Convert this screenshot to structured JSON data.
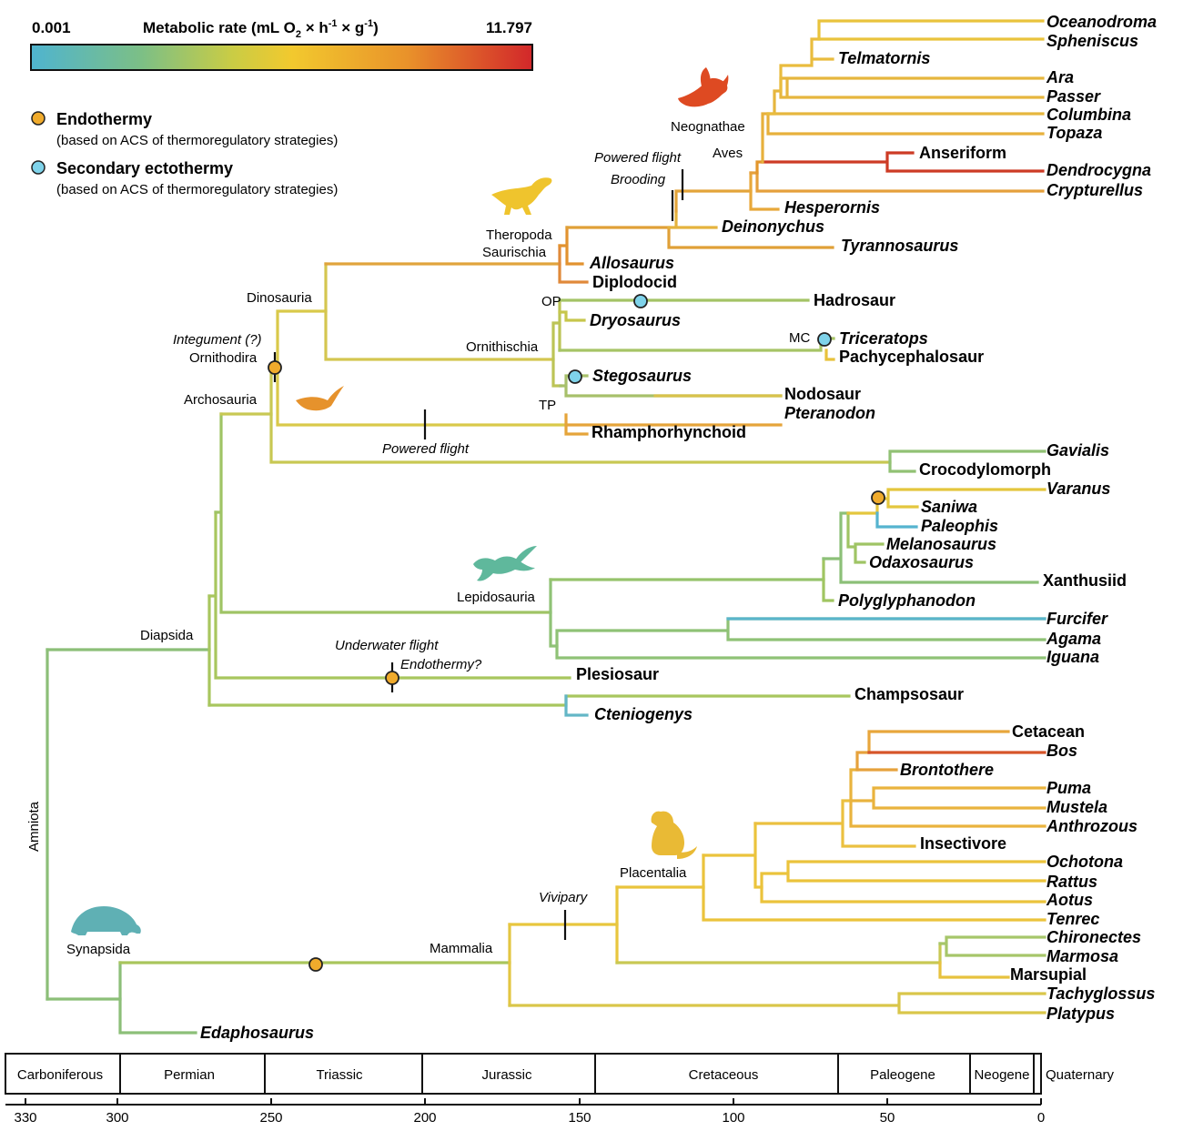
{
  "colorbar": {
    "min_label": "0.001",
    "max_label": "11.797",
    "title_pre": "Metabolic rate (mL O",
    "title_sub": "2",
    "title_mid": " × h",
    "title_sup1": "-1",
    "title_mid2": " × g",
    "title_sup2": "-1",
    "title_post": ")",
    "stops": [
      "#4fb4cf",
      "#7cbf86",
      "#c9cc45",
      "#f2c92e",
      "#e9922a",
      "#d2272a"
    ]
  },
  "legend": {
    "endothermy": {
      "title": "Endothermy",
      "subtitle": "(based on ACS of thermoregulatory strategies)",
      "color": "#f0ab2c"
    },
    "secondary": {
      "title": "Secondary ectothermy",
      "subtitle": "(based on ACS of thermoregulatory strategies)",
      "color": "#7fd3ea"
    }
  },
  "clades": {
    "neognathae": "Neognathae",
    "aves": "Aves",
    "theropoda": "Theropoda",
    "saurischia": "Saurischia",
    "dinosauria": "Dinosauria",
    "ornithodira": "Ornithodira",
    "archosauria": "Archosauria",
    "ornithischia": "Ornithischia",
    "op": "OP",
    "tp": "TP",
    "mc": "MC",
    "lepidosauria": "Lepidosauria",
    "diapsida": "Diapsida",
    "amniota": "Amniota",
    "synapsida": "Synapsida",
    "mammalia": "Mammalia",
    "placentalia": "Placentalia"
  },
  "events": {
    "powered_flight_aves": "Powered flight",
    "brooding": "Brooding",
    "integument": "Integument (?)",
    "powered_flight_ptero": "Powered flight",
    "underwater_flight": "Underwater flight",
    "endothermy_q": "Endothermy?",
    "vivipary": "Vivipary"
  },
  "taxa": {
    "oceanodroma": "Oceanodroma",
    "sphenicus": "Spheniscus",
    "telmatornis": "Telmatornis",
    "ara": "Ara",
    "passer": "Passer",
    "columbina": "Columbina",
    "topaza": "Topaza",
    "anseriform": "Anseriform",
    "dendrocygna": "Dendrocygna",
    "crypturellus": "Crypturellus",
    "hesperornis": "Hesperornis",
    "deinonychus": "Deinonychus",
    "tyrannosaurus": "Tyrannosaurus",
    "allosaurus": "Allosaurus",
    "diplodocid": "Diplodocid",
    "hadrosaur": "Hadrosaur",
    "dryosaurus": "Dryosaurus",
    "triceratops": "Triceratops",
    "pachycephalosaur": "Pachycephalosaur",
    "stegosaurus": "Stegosaurus",
    "nodosaur": "Nodosaur",
    "pteranodon": "Pteranodon",
    "rhamphorhynchoid": "Rhamphorhynchoid",
    "gavialis": "Gavialis",
    "crocodylomorph": "Crocodylomorph",
    "varanus": "Varanus",
    "saniwa": "Saniwa",
    "paleophis": "Paleophis",
    "melanosaurus": "Melanosaurus",
    "odaxosaurus": "Odaxosaurus",
    "xanthusiid": "Xanthusiid",
    "polyglyphanodon": "Polyglyphanodon",
    "furcifer": "Furcifer",
    "agama": "Agama",
    "iguana": "Iguana",
    "plesiosaur": "Plesiosaur",
    "champsosaur": "Champsosaur",
    "cteniogenys": "Cteniogenys",
    "cetacean": "Cetacean",
    "bos": "Bos",
    "brontothere": "Brontothere",
    "puma": "Puma",
    "mustela": "Mustela",
    "anthrozous": "Anthrozous",
    "insectivore": "Insectivore",
    "ochotona": "Ochotona",
    "rattus": "Rattus",
    "aotus": "Aotus",
    "tenrec": "Tenrec",
    "chironectes": "Chironectes",
    "marmosa": "Marmosa",
    "marsupial": "Marsupial",
    "tachyglossus": "Tachyglossus",
    "platypus": "Platypus",
    "edaphosaurus": "Edaphosaurus"
  },
  "timescale": {
    "periods": [
      "Carboniferous",
      "Permian",
      "Triassic",
      "Jurassic",
      "Cretaceous",
      "Paleogene",
      "Neogene",
      "Quaternary"
    ],
    "ticks": [
      "330",
      "300",
      "250",
      "200",
      "150",
      "100",
      "50",
      "0"
    ]
  },
  "colors": {
    "blue": "#5fb8cc",
    "green": "#8cbf78",
    "yellowgreen": "#bcc84e",
    "yellow": "#ecc93a",
    "amber": "#e8a93a",
    "orange": "#e2862e",
    "red": "#d0432a"
  }
}
